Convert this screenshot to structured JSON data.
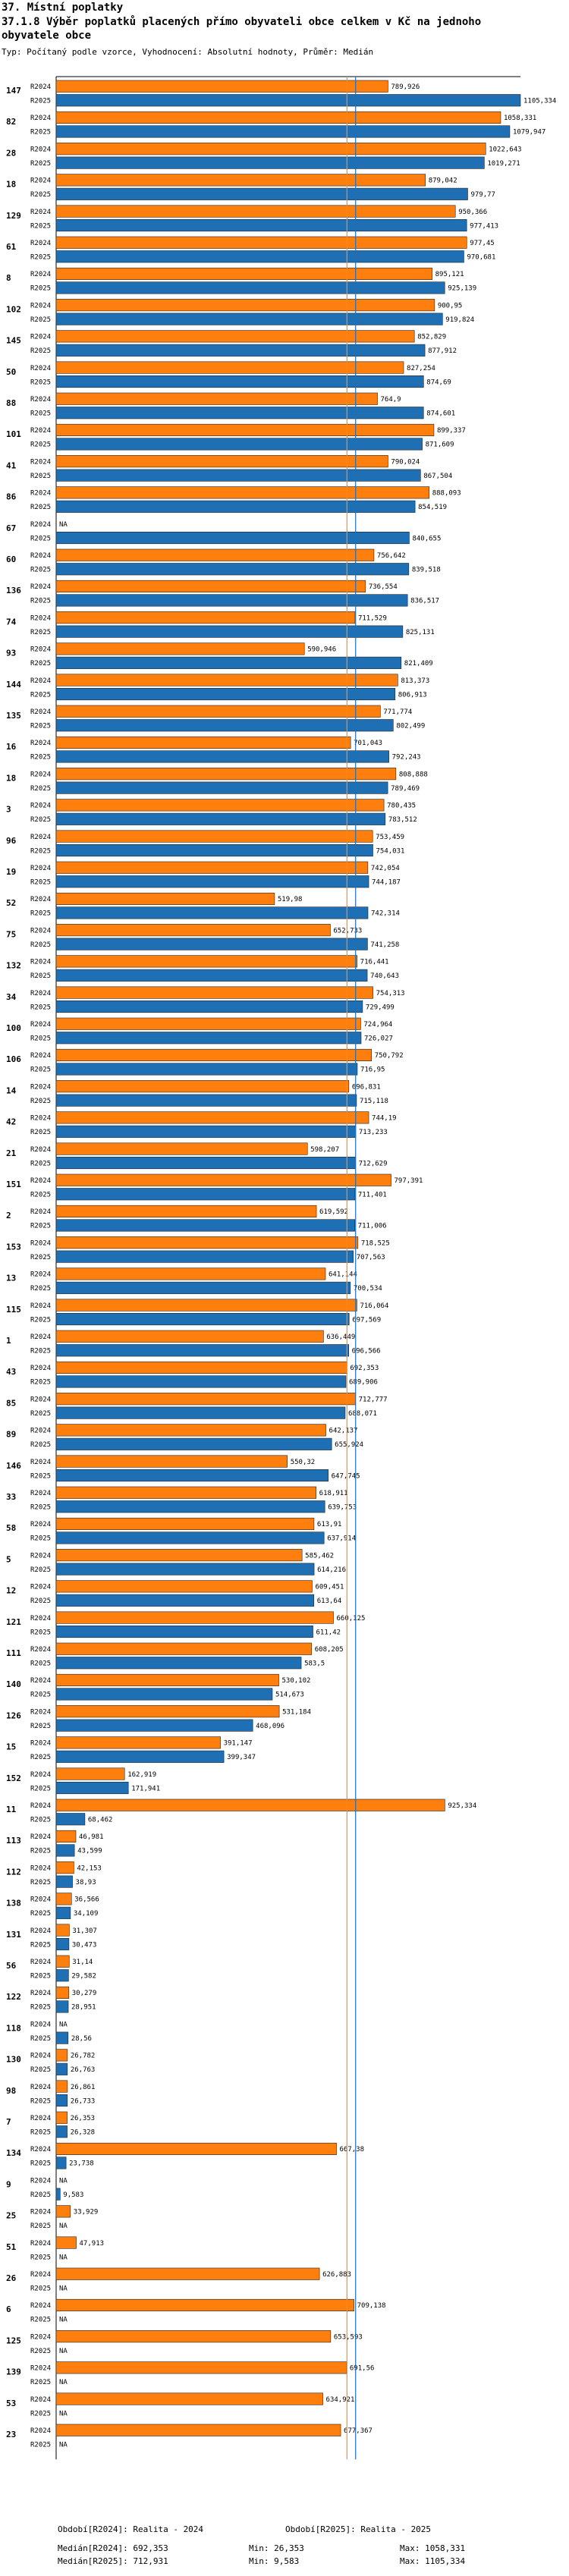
{
  "header": {
    "section": "37. Místní poplatky",
    "title": "37.1.8 Výběr poplatků placených přímo obyvateli obce celkem  v Kč na jednoho obyvatele obce",
    "subtitle": "Typ: Počítaný podle vzorce, Vyhodnocení: Absolutní hodnoty, Průměr: Medián"
  },
  "footer": {
    "period1": "Období[R2024]: Realita - 2024",
    "period2": "Období[R2025]: Realita - 2025",
    "median1": "Medián[R2024]: 692,353",
    "min1": "Min: 26,353",
    "max1": "Max: 1058,331",
    "median2": "Medián[R2025]: 712,931",
    "min2": "Min: 9,583",
    "max2": "Max: 1105,334"
  },
  "chart_data": {
    "type": "bar",
    "orientation": "horizontal",
    "series_names": [
      "R2024",
      "R2025"
    ],
    "colors": {
      "R2024": "#ff7f0e",
      "R2025": "#1f6fb4",
      "median1": "#ff8c1a",
      "median2": "#1f6fb4"
    },
    "xlim": [
      0,
      1105.334
    ],
    "medians": {
      "R2024": 692.353,
      "R2025": 712.931
    },
    "na_label": "NA",
    "rows": [
      {
        "id": "147",
        "r2024": 789.926,
        "r2025": 1105.334,
        "l2024": "789,926",
        "l2025": "1105,334"
      },
      {
        "id": "82",
        "r2024": 1058.331,
        "r2025": 1079.947,
        "l2024": "1058,331",
        "l2025": "1079,947"
      },
      {
        "id": "28",
        "r2024": 1022.643,
        "r2025": 1019.271,
        "l2024": "1022,643",
        "l2025": "1019,271"
      },
      {
        "id": "18",
        "r2024": 879.042,
        "r2025": 979.77,
        "l2024": "879,042",
        "l2025": "979,77"
      },
      {
        "id": "129",
        "r2024": 950.366,
        "r2025": 977.413,
        "l2024": "950,366",
        "l2025": "977,413"
      },
      {
        "id": "61",
        "r2024": 977.45,
        "r2025": 970.681,
        "l2024": "977,45",
        "l2025": "970,681"
      },
      {
        "id": "8",
        "r2024": 895.121,
        "r2025": 925.139,
        "l2024": "895,121",
        "l2025": "925,139"
      },
      {
        "id": "102",
        "r2024": 900.95,
        "r2025": 919.824,
        "l2024": "900,95",
        "l2025": "919,824"
      },
      {
        "id": "145",
        "r2024": 852.829,
        "r2025": 877.912,
        "l2024": "852,829",
        "l2025": "877,912"
      },
      {
        "id": "50",
        "r2024": 827.254,
        "r2025": 874.69,
        "l2024": "827,254",
        "l2025": "874,69"
      },
      {
        "id": "88",
        "r2024": 764.9,
        "r2025": 874.601,
        "l2024": "764,9",
        "l2025": "874,601"
      },
      {
        "id": "101",
        "r2024": 899.337,
        "r2025": 871.609,
        "l2024": "899,337",
        "l2025": "871,609"
      },
      {
        "id": "41",
        "r2024": 790.024,
        "r2025": 867.504,
        "l2024": "790,024",
        "l2025": "867,504"
      },
      {
        "id": "86",
        "r2024": 888.093,
        "r2025": 854.519,
        "l2024": "888,093",
        "l2025": "854,519"
      },
      {
        "id": "67",
        "r2024": null,
        "r2025": 840.655,
        "l2024": "NA",
        "l2025": "840,655"
      },
      {
        "id": "60",
        "r2024": 756.642,
        "r2025": 839.518,
        "l2024": "756,642",
        "l2025": "839,518"
      },
      {
        "id": "136",
        "r2024": 736.554,
        "r2025": 836.517,
        "l2024": "736,554",
        "l2025": "836,517"
      },
      {
        "id": "74",
        "r2024": 711.529,
        "r2025": 825.131,
        "l2024": "711,529",
        "l2025": "825,131"
      },
      {
        "id": "93",
        "r2024": 590.946,
        "r2025": 821.409,
        "l2024": "590,946",
        "l2025": "821,409"
      },
      {
        "id": "144",
        "r2024": 813.373,
        "r2025": 806.913,
        "l2024": "813,373",
        "l2025": "806,913"
      },
      {
        "id": "135",
        "r2024": 771.774,
        "r2025": 802.499,
        "l2024": "771,774",
        "l2025": "802,499"
      },
      {
        "id": "16",
        "r2024": 701.043,
        "r2025": 792.243,
        "l2024": "701,043",
        "l2025": "792,243"
      },
      {
        "id": "18",
        "r2024": 808.888,
        "r2025": 789.469,
        "l2024": "808,888",
        "l2025": "789,469"
      },
      {
        "id": "3",
        "r2024": 780.435,
        "r2025": 783.512,
        "l2024": "780,435",
        "l2025": "783,512"
      },
      {
        "id": "96",
        "r2024": 753.459,
        "r2025": 754.031,
        "l2024": "753,459",
        "l2025": "754,031"
      },
      {
        "id": "19",
        "r2024": 742.054,
        "r2025": 744.187,
        "l2024": "742,054",
        "l2025": "744,187"
      },
      {
        "id": "52",
        "r2024": 519.98,
        "r2025": 742.314,
        "l2024": "519,98",
        "l2025": "742,314"
      },
      {
        "id": "75",
        "r2024": 652.733,
        "r2025": 741.258,
        "l2024": "652,733",
        "l2025": "741,258"
      },
      {
        "id": "132",
        "r2024": 716.441,
        "r2025": 740.643,
        "l2024": "716,441",
        "l2025": "740,643"
      },
      {
        "id": "34",
        "r2024": 754.313,
        "r2025": 729.499,
        "l2024": "754,313",
        "l2025": "729,499"
      },
      {
        "id": "100",
        "r2024": 724.964,
        "r2025": 726.027,
        "l2024": "724,964",
        "l2025": "726,027"
      },
      {
        "id": "106",
        "r2024": 750.792,
        "r2025": 716.95,
        "l2024": "750,792",
        "l2025": "716,95"
      },
      {
        "id": "14",
        "r2024": 696.831,
        "r2025": 715.118,
        "l2024": "696,831",
        "l2025": "715,118"
      },
      {
        "id": "42",
        "r2024": 744.19,
        "r2025": 713.233,
        "l2024": "744,19",
        "l2025": "713,233"
      },
      {
        "id": "21",
        "r2024": 598.207,
        "r2025": 712.629,
        "l2024": "598,207",
        "l2025": "712,629"
      },
      {
        "id": "151",
        "r2024": 797.391,
        "r2025": 711.401,
        "l2024": "797,391",
        "l2025": "711,401"
      },
      {
        "id": "2",
        "r2024": 619.592,
        "r2025": 711.006,
        "l2024": "619,592",
        "l2025": "711,006"
      },
      {
        "id": "153",
        "r2024": 718.525,
        "r2025": 707.563,
        "l2024": "718,525",
        "l2025": "707,563"
      },
      {
        "id": "13",
        "r2024": 641.144,
        "r2025": 700.534,
        "l2024": "641,144",
        "l2025": "700,534"
      },
      {
        "id": "115",
        "r2024": 716.064,
        "r2025": 697.569,
        "l2024": "716,064",
        "l2025": "697,569"
      },
      {
        "id": "1",
        "r2024": 636.449,
        "r2025": 696.566,
        "l2024": "636,449",
        "l2025": "696,566"
      },
      {
        "id": "43",
        "r2024": 692.353,
        "r2025": 689.906,
        "l2024": "692,353",
        "l2025": "689,906"
      },
      {
        "id": "85",
        "r2024": 712.777,
        "r2025": 688.071,
        "l2024": "712,777",
        "l2025": "688,071"
      },
      {
        "id": "89",
        "r2024": 642.137,
        "r2025": 655.924,
        "l2024": "642,137",
        "l2025": "655,924"
      },
      {
        "id": "146",
        "r2024": 550.32,
        "r2025": 647.745,
        "l2024": "550,32",
        "l2025": "647,745"
      },
      {
        "id": "33",
        "r2024": 618.911,
        "r2025": 639.753,
        "l2024": "618,911",
        "l2025": "639,753"
      },
      {
        "id": "58",
        "r2024": 613.91,
        "r2025": 637.914,
        "l2024": "613,91",
        "l2025": "637,914"
      },
      {
        "id": "5",
        "r2024": 585.462,
        "r2025": 614.216,
        "l2024": "585,462",
        "l2025": "614,216"
      },
      {
        "id": "12",
        "r2024": 609.451,
        "r2025": 613.64,
        "l2024": "609,451",
        "l2025": "613,64"
      },
      {
        "id": "121",
        "r2024": 660.125,
        "r2025": 611.42,
        "l2024": "660,125",
        "l2025": "611,42"
      },
      {
        "id": "111",
        "r2024": 608.205,
        "r2025": 583.5,
        "l2024": "608,205",
        "l2025": "583,5"
      },
      {
        "id": "140",
        "r2024": 530.102,
        "r2025": 514.673,
        "l2024": "530,102",
        "l2025": "514,673"
      },
      {
        "id": "126",
        "r2024": 531.184,
        "r2025": 468.096,
        "l2024": "531,184",
        "l2025": "468,096"
      },
      {
        "id": "15",
        "r2024": 391.147,
        "r2025": 399.347,
        "l2024": "391,147",
        "l2025": "399,347"
      },
      {
        "id": "152",
        "r2024": 162.919,
        "r2025": 171.941,
        "l2024": "162,919",
        "l2025": "171,941"
      },
      {
        "id": "11",
        "r2024": 925.334,
        "r2025": 68.462,
        "l2024": "925,334",
        "l2025": "68,462"
      },
      {
        "id": "113",
        "r2024": 46.981,
        "r2025": 43.599,
        "l2024": "46,981",
        "l2025": "43,599"
      },
      {
        "id": "112",
        "r2024": 42.153,
        "r2025": 38.93,
        "l2024": "42,153",
        "l2025": "38,93"
      },
      {
        "id": "138",
        "r2024": 36.566,
        "r2025": 34.109,
        "l2024": "36,566",
        "l2025": "34,109"
      },
      {
        "id": "131",
        "r2024": 31.307,
        "r2025": 30.473,
        "l2024": "31,307",
        "l2025": "30,473"
      },
      {
        "id": "56",
        "r2024": 31.14,
        "r2025": 29.582,
        "l2024": "31,14",
        "l2025": "29,582"
      },
      {
        "id": "122",
        "r2024": 30.279,
        "r2025": 28.951,
        "l2024": "30,279",
        "l2025": "28,951"
      },
      {
        "id": "118",
        "r2024": null,
        "r2025": 28.56,
        "l2024": "NA",
        "l2025": "28,56"
      },
      {
        "id": "130",
        "r2024": 26.782,
        "r2025": 26.763,
        "l2024": "26,782",
        "l2025": "26,763"
      },
      {
        "id": "98",
        "r2024": 26.861,
        "r2025": 26.733,
        "l2024": "26,861",
        "l2025": "26,733"
      },
      {
        "id": "7",
        "r2024": 26.353,
        "r2025": 26.328,
        "l2024": "26,353",
        "l2025": "26,328"
      },
      {
        "id": "134",
        "r2024": 667.38,
        "r2025": 23.738,
        "l2024": "667,38",
        "l2025": "23,738"
      },
      {
        "id": "9",
        "r2024": null,
        "r2025": 9.583,
        "l2024": "NA",
        "l2025": "9,583"
      },
      {
        "id": "25",
        "r2024": 33.929,
        "r2025": null,
        "l2024": "33,929",
        "l2025": "NA"
      },
      {
        "id": "51",
        "r2024": 47.913,
        "r2025": null,
        "l2024": "47,913",
        "l2025": "NA"
      },
      {
        "id": "26",
        "r2024": 626.883,
        "r2025": null,
        "l2024": "626,883",
        "l2025": "NA"
      },
      {
        "id": "6",
        "r2024": 709.138,
        "r2025": null,
        "l2024": "709,138",
        "l2025": "NA"
      },
      {
        "id": "125",
        "r2024": 653.593,
        "r2025": null,
        "l2024": "653,593",
        "l2025": "NA"
      },
      {
        "id": "139",
        "r2024": 691.56,
        "r2025": null,
        "l2024": "691,56",
        "l2025": "NA"
      },
      {
        "id": "53",
        "r2024": 634.921,
        "r2025": null,
        "l2024": "634,921",
        "l2025": "NA"
      },
      {
        "id": "23",
        "r2024": 677.367,
        "r2025": null,
        "l2024": "677,367",
        "l2025": "NA"
      }
    ]
  }
}
